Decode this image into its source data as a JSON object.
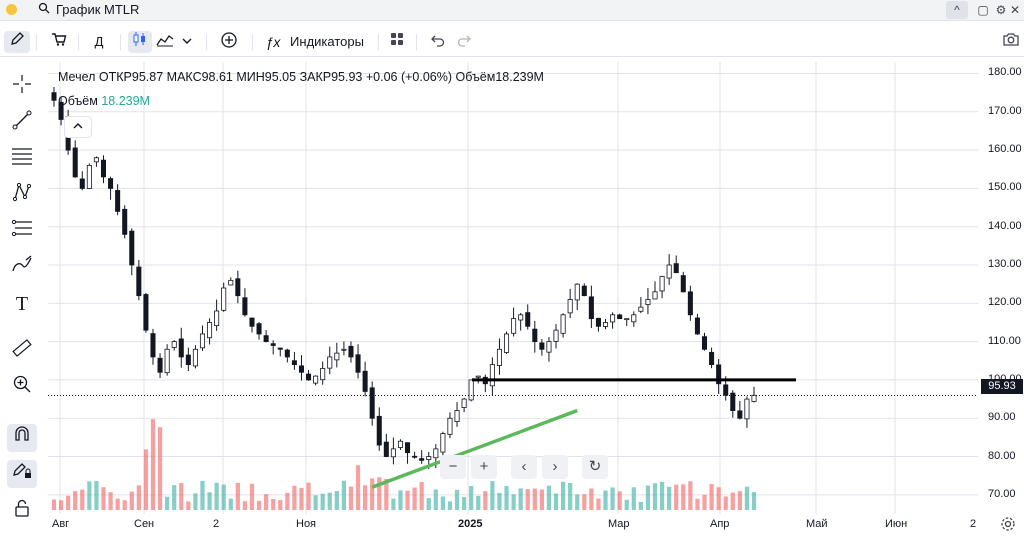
{
  "window": {
    "title": "График MTLR",
    "search_icon": "magnifier-icon",
    "controls": [
      "^",
      "▢",
      "⚙",
      "✕"
    ]
  },
  "toolbar": {
    "interval_label": "Д",
    "indicators_label": "Индикаторы",
    "indicators_icon": "fx-icon"
  },
  "legend": {
    "name": "Мечел",
    "open_label": "ОТКР",
    "open": "95.87",
    "high_label": "МАКС",
    "high": "98.61",
    "low_label": "МИН",
    "low": "95.05",
    "close_label": "ЗАКР",
    "close": "95.93",
    "change": "+0.06 (+0.06%)",
    "volume_label": "Объём",
    "volume": "18.239M"
  },
  "volume_legend": {
    "label": "Объём",
    "value": "18.239M"
  },
  "chart_data": {
    "type": "candlestick",
    "y_ticks": [
      "180.00",
      "170.00",
      "160.00",
      "150.00",
      "140.00",
      "130.00",
      "120.00",
      "110.00",
      "100.00",
      "90.00",
      "80.00",
      "70.00"
    ],
    "ylim": [
      65,
      183
    ],
    "last_price": "95.93",
    "x_ticks": [
      "Авг",
      "Сен",
      "2",
      "Ноя",
      "2025",
      "Мар",
      "Апр",
      "Май",
      "Июн",
      "2"
    ],
    "x_ticks_bold": [
      false,
      false,
      false,
      false,
      true,
      false,
      false,
      false,
      false,
      false
    ],
    "close_series": [
      173,
      168,
      160,
      153,
      150,
      156,
      158,
      153,
      150,
      144,
      138,
      130,
      122,
      113,
      106,
      102,
      108,
      110,
      106,
      104,
      108,
      112,
      115,
      118,
      124,
      126,
      122,
      117,
      114,
      112,
      110,
      109,
      108,
      106,
      104,
      102,
      100,
      101,
      103,
      106,
      107,
      108,
      106,
      102,
      97,
      90,
      83,
      80,
      82,
      84,
      81,
      80,
      79,
      80,
      82,
      86,
      90,
      92,
      95,
      100,
      101,
      99,
      104,
      108,
      112,
      116,
      117,
      114,
      110,
      108,
      110,
      113,
      117,
      121,
      125,
      122,
      116,
      114,
      115,
      117,
      116,
      116,
      117,
      119,
      121,
      123,
      127,
      130,
      128,
      123,
      117,
      112,
      108,
      104,
      99,
      96,
      92,
      90,
      95,
      96
    ],
    "horizontal_line": 100,
    "trendline": {
      "from": [
        45,
        72
      ],
      "to": [
        74,
        92
      ]
    },
    "volume_up_color": "#26a69a",
    "volume_down_color": "#ef5350"
  },
  "zoom_controls": [
    "−",
    "+",
    "‹",
    "›",
    "↻"
  ],
  "colors": {
    "up": "#ffffff",
    "down": "#131722",
    "line": "#000000",
    "trend": "#5cb85c",
    "grid": "#e0e3eb"
  }
}
